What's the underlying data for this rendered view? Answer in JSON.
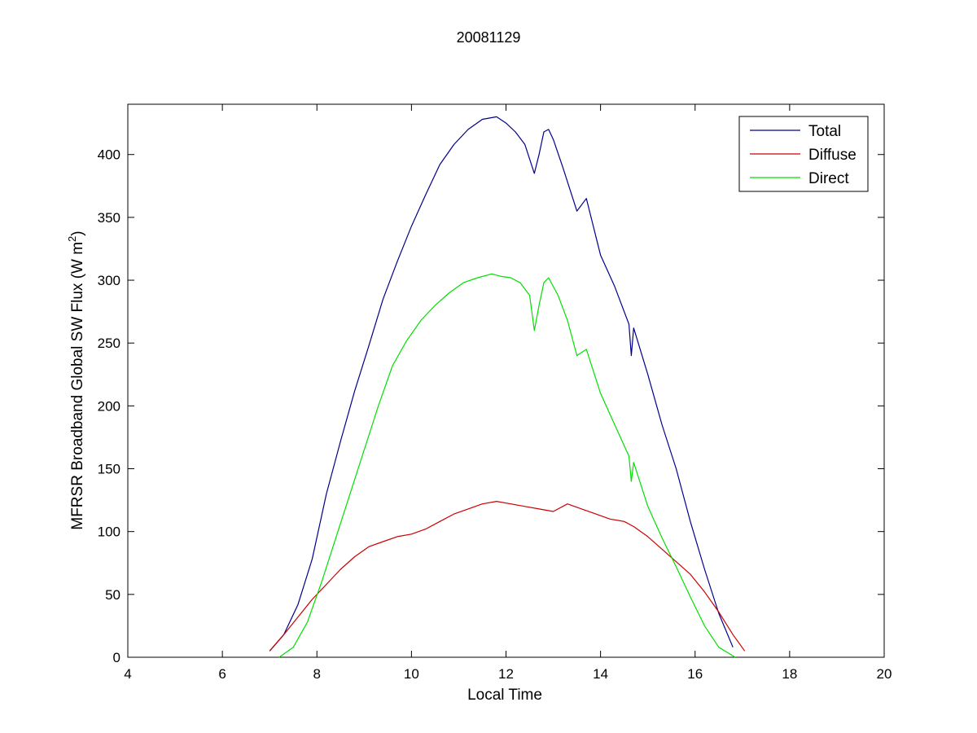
{
  "chart_data": {
    "type": "line",
    "title": "20081129",
    "xlabel": "Local Time",
    "ylabel": {
      "prefix": "MFRSR Broadband Global SW Flux (W m",
      "superscript": "2",
      "suffix": ")"
    },
    "xlim": [
      4,
      20
    ],
    "ylim": [
      0,
      440
    ],
    "xticks": [
      4,
      6,
      8,
      10,
      12,
      14,
      16,
      18,
      20
    ],
    "yticks": [
      0,
      50,
      100,
      150,
      200,
      250,
      300,
      350,
      400
    ],
    "grid": false,
    "legend_position": "top-right",
    "series": [
      {
        "name": "Total",
        "color": "#00008b",
        "x": [
          7.0,
          7.3,
          7.6,
          7.9,
          8.2,
          8.5,
          8.8,
          9.1,
          9.4,
          9.7,
          10.0,
          10.3,
          10.6,
          10.9,
          11.2,
          11.5,
          11.8,
          12.0,
          12.2,
          12.4,
          12.6,
          12.7,
          12.8,
          12.9,
          13.0,
          13.2,
          13.5,
          13.7,
          14.0,
          14.3,
          14.6,
          14.65,
          14.7,
          15.0,
          15.3,
          15.6,
          15.9,
          16.2,
          16.5,
          16.8
        ],
        "y": [
          5,
          18,
          42,
          78,
          130,
          172,
          212,
          248,
          285,
          315,
          343,
          368,
          392,
          408,
          420,
          428,
          430,
          425,
          418,
          408,
          385,
          400,
          418,
          420,
          412,
          390,
          355,
          365,
          320,
          295,
          265,
          240,
          262,
          225,
          185,
          150,
          108,
          70,
          35,
          8
        ]
      },
      {
        "name": "Diffuse",
        "color": "#cc0000",
        "x": [
          7.0,
          7.3,
          7.6,
          7.9,
          8.2,
          8.5,
          8.8,
          9.1,
          9.4,
          9.7,
          10.0,
          10.3,
          10.6,
          10.9,
          11.2,
          11.5,
          11.8,
          12.1,
          12.4,
          12.7,
          13.0,
          13.3,
          13.6,
          13.9,
          14.2,
          14.5,
          14.7,
          15.0,
          15.3,
          15.6,
          15.9,
          16.2,
          16.5,
          16.8,
          17.05
        ],
        "y": [
          5,
          18,
          32,
          46,
          58,
          70,
          80,
          88,
          92,
          96,
          98,
          102,
          108,
          114,
          118,
          122,
          124,
          122,
          120,
          118,
          116,
          122,
          118,
          114,
          110,
          108,
          104,
          96,
          86,
          76,
          66,
          52,
          36,
          18,
          5
        ]
      },
      {
        "name": "Direct",
        "color": "#00e000",
        "x": [
          7.2,
          7.5,
          7.8,
          8.1,
          8.4,
          8.7,
          9.0,
          9.3,
          9.6,
          9.9,
          10.2,
          10.5,
          10.8,
          11.1,
          11.4,
          11.7,
          11.9,
          12.1,
          12.3,
          12.5,
          12.6,
          12.7,
          12.8,
          12.9,
          13.1,
          13.3,
          13.5,
          13.7,
          14.0,
          14.3,
          14.6,
          14.65,
          14.7,
          15.0,
          15.3,
          15.6,
          15.9,
          16.2,
          16.5,
          16.85
        ],
        "y": [
          0,
          8,
          28,
          60,
          95,
          130,
          165,
          200,
          232,
          252,
          268,
          280,
          290,
          298,
          302,
          305,
          303,
          302,
          298,
          288,
          260,
          280,
          298,
          302,
          288,
          268,
          240,
          245,
          210,
          185,
          160,
          140,
          155,
          120,
          95,
          72,
          48,
          25,
          8,
          0
        ]
      }
    ]
  }
}
